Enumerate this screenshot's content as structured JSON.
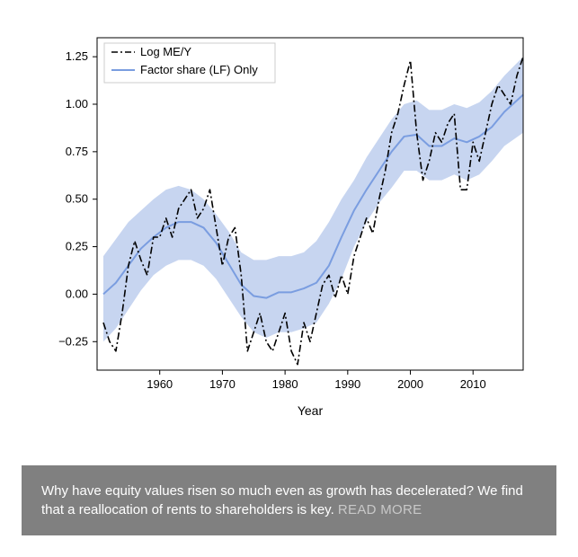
{
  "chart": {
    "type": "line",
    "xlabel": "Year",
    "xlim": [
      1950,
      2018
    ],
    "xtick_positions": [
      1960,
      1970,
      1980,
      1990,
      2000,
      2010
    ],
    "xtick_labels": [
      "1960",
      "1970",
      "1980",
      "1990",
      "2000",
      "2010"
    ],
    "ylim": [
      -0.4,
      1.35
    ],
    "ytick_positions": [
      -0.25,
      0.0,
      0.25,
      0.5,
      0.75,
      1.0,
      1.25
    ],
    "ytick_labels": [
      "−0.25",
      "0.00",
      "0.25",
      "0.50",
      "0.75",
      "1.00",
      "1.25"
    ],
    "label_fontsize": 14,
    "tick_fontsize": 13,
    "background_color": "#ffffff",
    "spine_color": "#000000",
    "legend": {
      "position": "upper-left",
      "items": [
        {
          "label": "Log ME/Y",
          "color": "#000000",
          "style": "dashdot",
          "width": 1.6
        },
        {
          "label": "Factor share (LF) Only",
          "color": "#7a9de0",
          "style": "solid",
          "width": 2.0
        }
      ],
      "border_color": "#cccccc",
      "bg_color": "#ffffff"
    },
    "band": {
      "fill_color": "#a9bfe8",
      "opacity": 0.65
    },
    "line_blue": {
      "color": "#7a9de0",
      "width": 2.0,
      "x": [
        1951,
        1953,
        1955,
        1957,
        1959,
        1961,
        1963,
        1965,
        1967,
        1969,
        1971,
        1973,
        1975,
        1977,
        1979,
        1981,
        1983,
        1985,
        1987,
        1989,
        1991,
        1993,
        1995,
        1997,
        1999,
        2001,
        2003,
        2005,
        2007,
        2009,
        2011,
        2013,
        2015,
        2018
      ],
      "y": [
        0.0,
        0.06,
        0.15,
        0.24,
        0.3,
        0.35,
        0.38,
        0.38,
        0.35,
        0.27,
        0.16,
        0.05,
        -0.01,
        -0.02,
        0.01,
        0.01,
        0.03,
        0.06,
        0.15,
        0.3,
        0.44,
        0.55,
        0.65,
        0.75,
        0.83,
        0.84,
        0.78,
        0.78,
        0.82,
        0.8,
        0.83,
        0.88,
        0.96,
        1.05
      ]
    },
    "band_data": {
      "x": [
        1951,
        1953,
        1955,
        1957,
        1959,
        1961,
        1963,
        1965,
        1967,
        1969,
        1971,
        1973,
        1975,
        1977,
        1979,
        1981,
        1983,
        1985,
        1987,
        1989,
        1991,
        1993,
        1995,
        1997,
        1999,
        2001,
        2003,
        2005,
        2007,
        2009,
        2011,
        2013,
        2015,
        2018
      ],
      "upper": [
        0.2,
        0.29,
        0.38,
        0.44,
        0.5,
        0.55,
        0.57,
        0.55,
        0.5,
        0.42,
        0.33,
        0.22,
        0.18,
        0.18,
        0.2,
        0.2,
        0.22,
        0.28,
        0.38,
        0.5,
        0.6,
        0.72,
        0.82,
        0.92,
        1.0,
        1.02,
        0.97,
        0.97,
        1.0,
        0.98,
        1.01,
        1.07,
        1.15,
        1.25
      ],
      "lower": [
        -0.25,
        -0.18,
        -0.08,
        0.02,
        0.1,
        0.15,
        0.18,
        0.18,
        0.15,
        0.08,
        -0.02,
        -0.12,
        -0.2,
        -0.23,
        -0.2,
        -0.2,
        -0.18,
        -0.15,
        -0.05,
        0.08,
        0.25,
        0.38,
        0.48,
        0.56,
        0.65,
        0.65,
        0.6,
        0.6,
        0.63,
        0.6,
        0.63,
        0.7,
        0.78,
        0.85
      ]
    },
    "line_black": {
      "color": "#000000",
      "width": 1.6,
      "dash": "8,3,2,3",
      "x": [
        1951,
        1952,
        1953,
        1954,
        1955,
        1956,
        1957,
        1958,
        1959,
        1960,
        1961,
        1962,
        1963,
        1964,
        1965,
        1966,
        1967,
        1968,
        1969,
        1970,
        1971,
        1972,
        1973,
        1974,
        1975,
        1976,
        1977,
        1978,
        1979,
        1980,
        1981,
        1982,
        1983,
        1984,
        1985,
        1986,
        1987,
        1988,
        1989,
        1990,
        1991,
        1992,
        1993,
        1994,
        1995,
        1996,
        1997,
        1998,
        1999,
        2000,
        2001,
        2002,
        2003,
        2004,
        2005,
        2006,
        2007,
        2008,
        2009,
        2010,
        2011,
        2012,
        2013,
        2014,
        2015,
        2016,
        2017,
        2018
      ],
      "y": [
        -0.15,
        -0.25,
        -0.3,
        -0.1,
        0.15,
        0.28,
        0.18,
        0.1,
        0.3,
        0.3,
        0.4,
        0.3,
        0.45,
        0.5,
        0.55,
        0.4,
        0.45,
        0.55,
        0.35,
        0.15,
        0.3,
        0.35,
        0.1,
        -0.3,
        -0.2,
        -0.1,
        -0.25,
        -0.3,
        -0.2,
        -0.1,
        -0.3,
        -0.37,
        -0.15,
        -0.25,
        -0.1,
        0.05,
        0.1,
        -0.02,
        0.1,
        0.0,
        0.2,
        0.3,
        0.4,
        0.32,
        0.5,
        0.65,
        0.85,
        0.95,
        1.1,
        1.23,
        0.85,
        0.6,
        0.7,
        0.85,
        0.8,
        0.9,
        0.95,
        0.55,
        0.55,
        0.8,
        0.7,
        0.85,
        1.0,
        1.1,
        1.05,
        1.0,
        1.15,
        1.25
      ]
    }
  },
  "caption": {
    "text": "Why have equity values risen so much even as growth has decelerated? We find that a reallocation of rents to shareholders is key.",
    "read_more": "READ MORE",
    "bg_color": "#808080",
    "text_color": "#ffffff",
    "read_more_color": "#c8c8c8",
    "fontsize": 15
  }
}
